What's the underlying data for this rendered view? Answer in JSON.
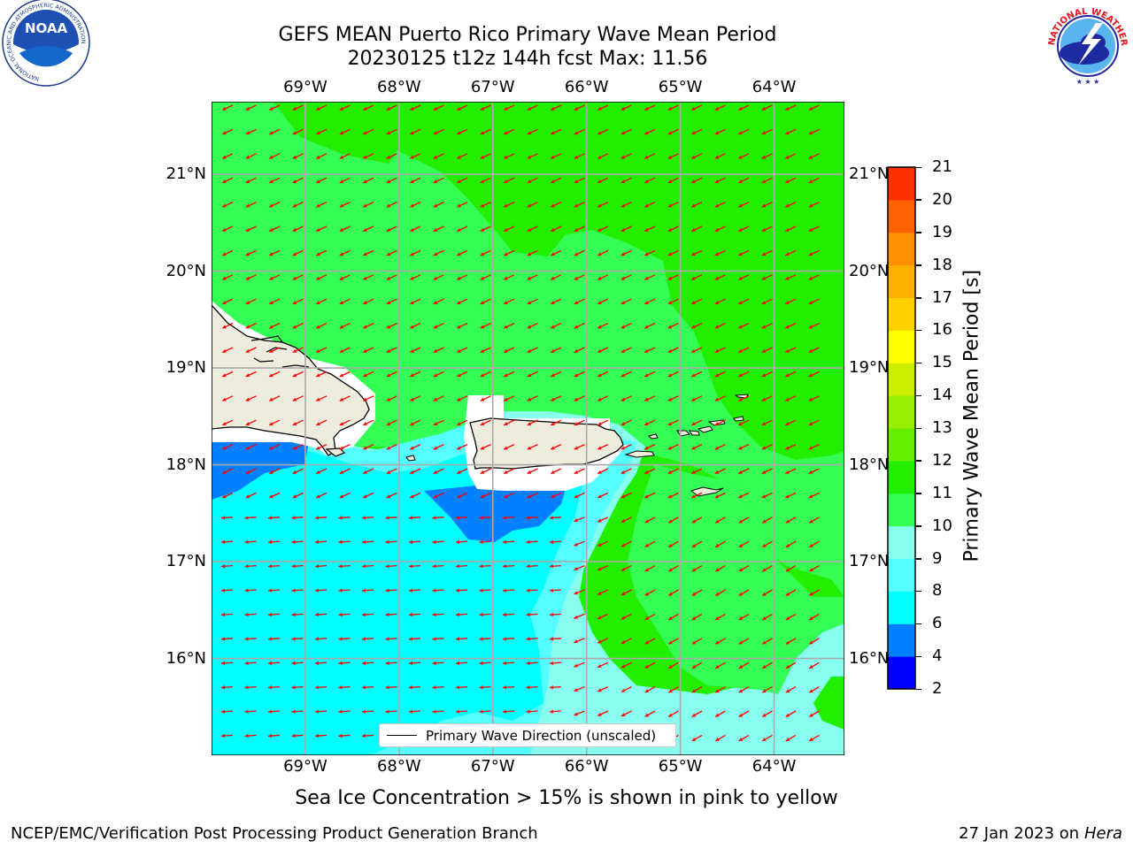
{
  "title": {
    "line1": "GEFS MEAN Puerto Rico Primary Wave Mean Period",
    "line2": "20230125 t12z 144h fcst   Max: 11.56"
  },
  "logos": {
    "noaa": "NOAA",
    "nws_ring": "NATIONAL WEATHER SERVICE",
    "noaa_ring": "NATIONAL OCEANIC AND ATMOSPHERIC ADMINISTRATION",
    "noaa_ring_bottom": "U.S. DEPARTMENT OF COMMERCE"
  },
  "map": {
    "lon_labels": [
      "69°W",
      "68°W",
      "67°W",
      "66°W",
      "65°W",
      "64°W"
    ],
    "lat_labels": [
      "21°N",
      "20°N",
      "19°N",
      "18°N",
      "17°N",
      "16°N"
    ],
    "extent": {
      "lon_min": -70.0,
      "lon_max": -63.25,
      "lat_min": 15.0,
      "lat_max": 21.75
    },
    "arrow_color": "#ff0000",
    "land_color": "#eeecdc",
    "legend_label": "Primary Wave Direction (unscaled)"
  },
  "colorbar": {
    "label": "Primary Wave Mean Period [s]",
    "ticks": [
      "2",
      "4",
      "6",
      "8",
      "9",
      "10",
      "11",
      "12",
      "13",
      "14",
      "15",
      "16",
      "17",
      "18",
      "19",
      "20",
      "21"
    ],
    "colors": [
      "#0000ff",
      "#0080ff",
      "#00ffff",
      "#55ffff",
      "#88ffee",
      "#33ff55",
      "#22ee00",
      "#66ee00",
      "#99ee00",
      "#ccee00",
      "#ffff00",
      "#ffd000",
      "#ffb000",
      "#ff9000",
      "#ff6000",
      "#ff3000",
      "#ff0000"
    ]
  },
  "note": "Sea Ice Concentration > 15% is shown in pink to yellow",
  "footer": {
    "left": "NCEP/EMC/Verification Post Processing Product Generation Branch",
    "right_date": "27 Jan 2023 on",
    "right_host": "Hera"
  }
}
